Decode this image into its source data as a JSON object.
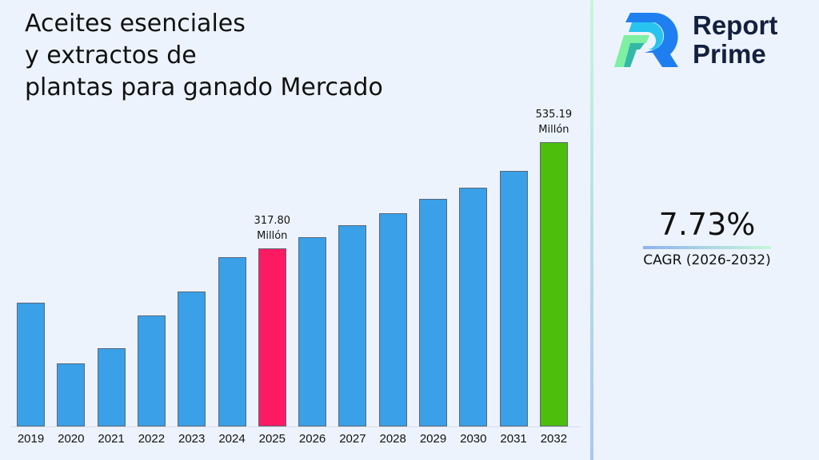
{
  "title_lines": [
    "Aceites esenciales",
    "y extractos de",
    "plantas para ganado Mercado"
  ],
  "brand": {
    "line1": "Report",
    "line2": "Prime"
  },
  "cagr": {
    "value": "7.73%",
    "label": "CAGR (2026-2032)"
  },
  "colors": {
    "default_bar": "#3aa0e8",
    "highlight_2025": "#fc1b63",
    "highlight_2032": "#4dbe0c"
  },
  "chart_data": {
    "type": "bar",
    "title": "Aceites esenciales y extractos de plantas para ganado Mercado",
    "xlabel": "",
    "ylabel": "",
    "categories": [
      "2019",
      "2020",
      "2021",
      "2022",
      "2023",
      "2024",
      "2025",
      "2026",
      "2027",
      "2028",
      "2029",
      "2030",
      "2031",
      "2032"
    ],
    "values": [
      206,
      83,
      113,
      181,
      230,
      299,
      317.8,
      341,
      365,
      390,
      419,
      442,
      476,
      535.19
    ],
    "annotations": [
      {
        "category": "2025",
        "text": "317.80",
        "unit": "Millón"
      },
      {
        "category": "2032",
        "text": "535.19",
        "unit": "Millón"
      }
    ],
    "grid": false,
    "legend": null
  }
}
